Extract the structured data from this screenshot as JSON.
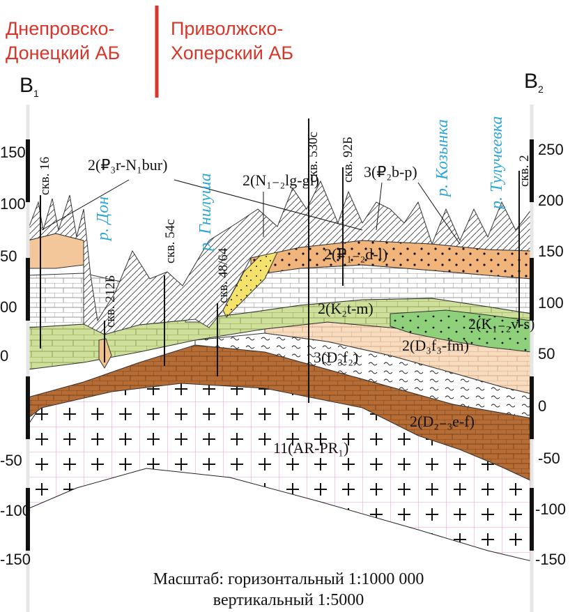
{
  "header": {
    "left_basin": [
      "Днепровско-",
      "Донецкий АБ"
    ],
    "right_basin": [
      "Приволжско-",
      "Хоперский АБ"
    ],
    "left_end": {
      "letter": "B",
      "index": "1"
    },
    "right_end": {
      "letter": "B",
      "index": "2"
    }
  },
  "axis": {
    "left_ticks": [
      "150",
      "100",
      "50",
      "00",
      "0",
      "-50",
      "-100",
      "-150"
    ],
    "right_ticks": [
      "250",
      "200",
      "150",
      "100",
      "50",
      "0",
      "-50",
      "-100",
      "-150"
    ]
  },
  "wells": [
    "скв. 16",
    "скв. 212Б",
    "скв. 54с",
    "скв. 48/64",
    "скв. 530с",
    "скв. 92Б",
    "скв. 2"
  ],
  "rivers": [
    "р. Дон",
    "р. Гнилуша",
    "р. Козынка",
    "р. Тулучеевка"
  ],
  "strata": {
    "p3_bur": "2(₽₃r-N₁bur)",
    "n12_lggl": "2(N₁₋₂lg-gl)",
    "p2_bp": "3(₽₂b-p)",
    "p12_dl": "2(₽₁₋₂d-l)",
    "k2_tm": "2(K₂t-m)",
    "k12_vs": "2(K₁₋₂v-s)",
    "d3_f2": "3(D₃f₂)",
    "d3_f3fm": "2(D₃f₃-fm)",
    "d23_ef": "2(D₂₋₃e-f)",
    "ar_pr": "11(AR-PR₁)"
  },
  "scale": {
    "horizontal": "Масштаб: горизонтальный 1:1000 000",
    "vertical": "вертикальный 1:5000"
  }
}
